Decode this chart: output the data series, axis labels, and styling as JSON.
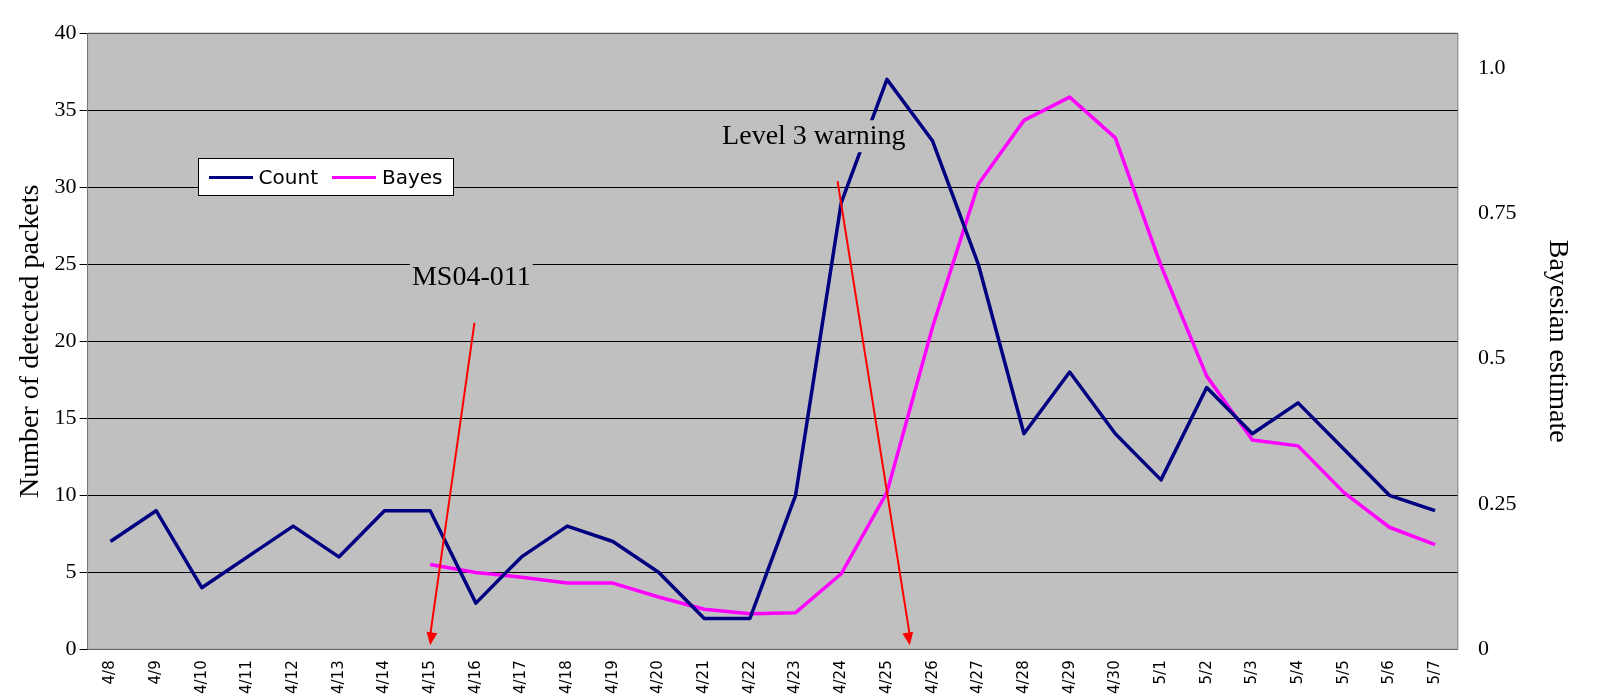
{
  "chart_data": {
    "type": "line",
    "ylabel": "Number of detected packets",
    "y2label": "Bayesian estimate",
    "categories": [
      "4/8",
      "4/9",
      "4/10",
      "4/11",
      "4/12",
      "4/13",
      "4/14",
      "4/15",
      "4/16",
      "4/17",
      "4/18",
      "4/19",
      "4/20",
      "4/21",
      "4/22",
      "4/23",
      "4/24",
      "4/25",
      "4/26",
      "4/27",
      "4/28",
      "4/29",
      "4/30",
      "5/1",
      "5/2",
      "5/3",
      "5/4",
      "5/5",
      "5/6",
      "5/7"
    ],
    "series": [
      {
        "name": "Count",
        "color": "#000080",
        "values": [
          7,
          9,
          4,
          6,
          8,
          6,
          9,
          9,
          3,
          6,
          8,
          7,
          5,
          2,
          2,
          10,
          29,
          37,
          33,
          25,
          14,
          18,
          14,
          11,
          17,
          14,
          16,
          13,
          10,
          9
        ]
      },
      {
        "name": "Bayes",
        "color": "#ff00ff",
        "axis": "y2",
        "values": [
          null,
          null,
          null,
          null,
          null,
          null,
          null,
          0.146,
          0.132,
          0.124,
          0.114,
          0.114,
          0.09,
          0.069,
          0.061,
          0.063,
          0.13,
          0.27,
          0.555,
          0.8,
          0.91,
          0.95,
          0.88,
          0.66,
          0.47,
          0.36,
          0.35,
          0.27,
          0.21,
          0.18
        ]
      }
    ],
    "ylim": [
      0,
      40
    ],
    "yticks": [
      0,
      5,
      10,
      15,
      20,
      25,
      30,
      35,
      40
    ],
    "y2lim": [
      0,
      1.06
    ],
    "y2ticks": [
      0,
      0.25,
      0.5,
      0.75,
      {
        "value": 1,
        "label": "1.0"
      }
    ],
    "annotations": [
      "MS04-011",
      "Level 3 warning"
    ],
    "grid": "y",
    "legend": "top left",
    "marker": "none",
    "line_style": "solid"
  }
}
